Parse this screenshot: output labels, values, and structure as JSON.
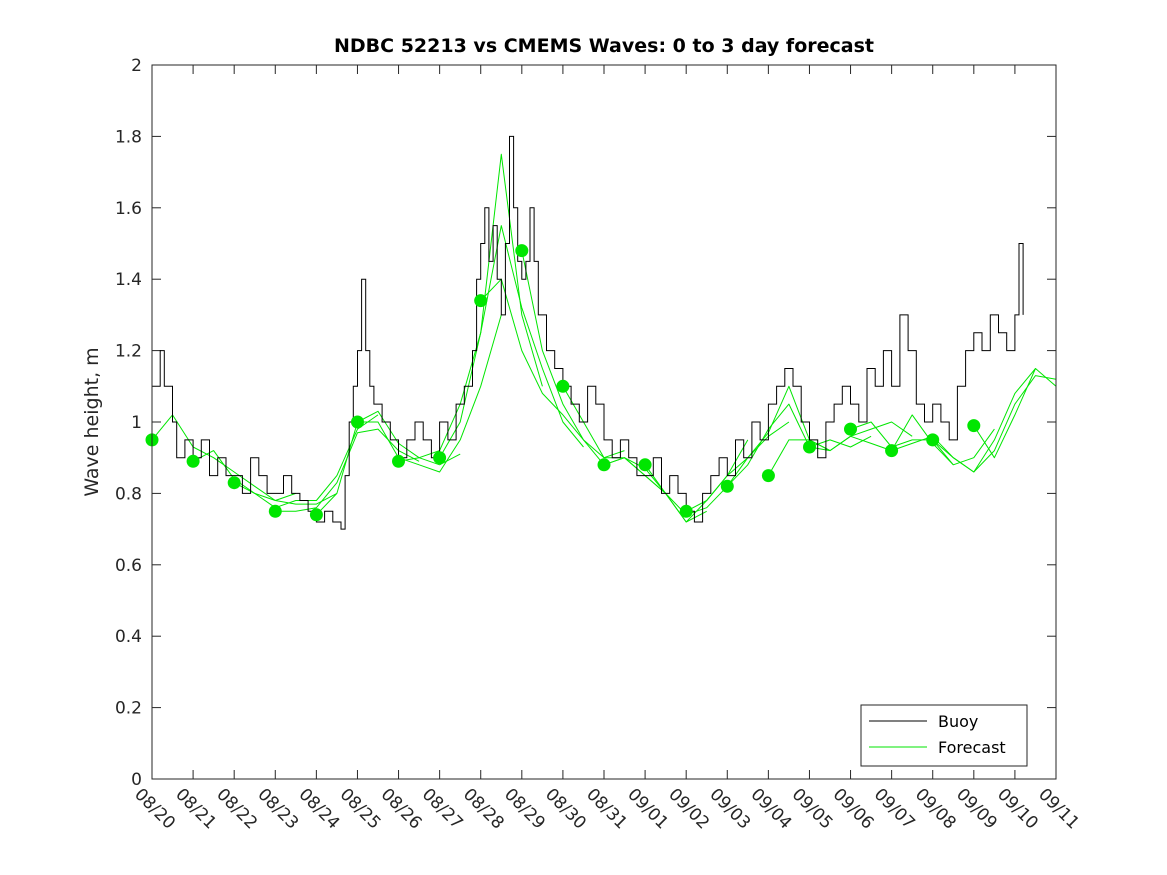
{
  "chart_data": {
    "type": "line",
    "title": "NDBC 52213 vs CMEMS Waves: 0 to 3 day forecast",
    "xlabel": "",
    "ylabel": "Wave height, m",
    "ylim": [
      0,
      2
    ],
    "yticks": [
      "0",
      "0.2",
      "0.4",
      "0.6",
      "0.8",
      "1",
      "1.2",
      "1.4",
      "1.6",
      "1.8",
      "2"
    ],
    "xlim": [
      0,
      22
    ],
    "xtick_labels": [
      "08/20",
      "08/21",
      "08/22",
      "08/23",
      "08/24",
      "08/25",
      "08/26",
      "08/27",
      "08/28",
      "08/29",
      "08/30",
      "08/31",
      "09/01",
      "09/02",
      "09/03",
      "09/04",
      "09/05",
      "09/06",
      "09/07",
      "09/08",
      "09/09",
      "09/10",
      "09/11"
    ],
    "legend": {
      "location": "bottom-right",
      "entries": [
        "Buoy",
        "Forecast"
      ]
    },
    "colors": {
      "buoy": "#000000",
      "forecast": "#00e600",
      "axis": "#262626"
    },
    "series": [
      {
        "name": "Buoy",
        "x": [
          0,
          0.2,
          0.3,
          0.5,
          0.6,
          0.8,
          1.0,
          1.2,
          1.4,
          1.6,
          1.8,
          2.0,
          2.2,
          2.4,
          2.6,
          2.8,
          3.0,
          3.2,
          3.4,
          3.6,
          3.8,
          4.0,
          4.2,
          4.4,
          4.6,
          4.7,
          4.8,
          4.9,
          5.0,
          5.1,
          5.2,
          5.3,
          5.4,
          5.6,
          5.8,
          6.0,
          6.2,
          6.4,
          6.6,
          6.8,
          7.0,
          7.2,
          7.4,
          7.6,
          7.8,
          7.9,
          8.0,
          8.1,
          8.2,
          8.3,
          8.4,
          8.5,
          8.6,
          8.7,
          8.8,
          8.9,
          9.0,
          9.1,
          9.2,
          9.3,
          9.4,
          9.6,
          9.8,
          10.0,
          10.2,
          10.4,
          10.6,
          10.8,
          11.0,
          11.2,
          11.4,
          11.6,
          11.8,
          12.0,
          12.2,
          12.4,
          12.6,
          12.8,
          13.0,
          13.2,
          13.4,
          13.6,
          13.8,
          14.0,
          14.2,
          14.4,
          14.6,
          14.8,
          15.0,
          15.2,
          15.4,
          15.6,
          15.8,
          16.0,
          16.2,
          16.4,
          16.6,
          16.8,
          17.0,
          17.2,
          17.4,
          17.6,
          17.8,
          18.0,
          18.2,
          18.4,
          18.6,
          18.8,
          19.0,
          19.2,
          19.4,
          19.6,
          19.8,
          20.0,
          20.2,
          20.4,
          20.6,
          20.8,
          21.0,
          21.1,
          21.2
        ],
        "values": [
          1.1,
          1.2,
          1.1,
          1.0,
          0.9,
          0.95,
          0.9,
          0.95,
          0.85,
          0.9,
          0.85,
          0.85,
          0.8,
          0.9,
          0.85,
          0.8,
          0.8,
          0.85,
          0.8,
          0.78,
          0.75,
          0.72,
          0.75,
          0.72,
          0.7,
          0.85,
          1.0,
          1.1,
          1.2,
          1.4,
          1.2,
          1.1,
          1.05,
          1.0,
          0.95,
          0.9,
          0.95,
          1.0,
          0.95,
          0.9,
          1.0,
          0.95,
          1.05,
          1.1,
          1.2,
          1.4,
          1.5,
          1.6,
          1.45,
          1.55,
          1.4,
          1.3,
          1.5,
          1.8,
          1.6,
          1.45,
          1.4,
          1.45,
          1.6,
          1.45,
          1.3,
          1.2,
          1.15,
          1.1,
          1.05,
          1.0,
          1.1,
          1.05,
          0.95,
          0.9,
          0.95,
          0.9,
          0.85,
          0.85,
          0.9,
          0.8,
          0.85,
          0.8,
          0.75,
          0.72,
          0.8,
          0.85,
          0.9,
          0.85,
          0.95,
          0.9,
          1.0,
          0.95,
          1.05,
          1.1,
          1.15,
          1.1,
          1.0,
          0.95,
          0.9,
          1.0,
          1.05,
          1.1,
          1.05,
          1.0,
          1.15,
          1.1,
          1.2,
          1.1,
          1.3,
          1.2,
          1.05,
          1.0,
          1.05,
          1.0,
          0.95,
          1.1,
          1.2,
          1.25,
          1.2,
          1.3,
          1.25,
          1.2,
          1.3,
          1.5,
          1.3
        ]
      },
      {
        "name": "Forecast",
        "markers": {
          "x": [
            0,
            1,
            2,
            3,
            4,
            5,
            6,
            7,
            8,
            9,
            10,
            11,
            12,
            13,
            14,
            15,
            16,
            17,
            18,
            19,
            20
          ],
          "values": [
            0.95,
            0.89,
            0.83,
            0.75,
            0.74,
            1.0,
            0.89,
            0.9,
            1.34,
            1.48,
            1.1,
            0.88,
            0.88,
            0.75,
            0.82,
            0.85,
            0.93,
            0.98,
            0.92,
            0.95,
            0.99
          ]
        },
        "runs": [
          {
            "x": [
              0,
              0.5,
              1,
              1.5,
              2,
              2.5,
              3,
              3.5
            ],
            "values": [
              0.95,
              1.02,
              0.93,
              0.9,
              0.86,
              0.82,
              0.78,
              0.8
            ]
          },
          {
            "x": [
              1,
              1.5,
              2,
              2.5,
              3,
              3.5,
              4,
              4.5
            ],
            "values": [
              0.89,
              0.92,
              0.84,
              0.8,
              0.78,
              0.77,
              0.77,
              0.8
            ]
          },
          {
            "x": [
              2,
              2.5,
              3,
              3.5,
              4,
              4.5,
              5,
              5.5
            ],
            "values": [
              0.83,
              0.8,
              0.76,
              0.78,
              0.78,
              0.85,
              0.98,
              1.02
            ]
          },
          {
            "x": [
              3,
              3.5,
              4,
              4.5,
              5,
              5.5,
              6,
              6.5
            ],
            "values": [
              0.75,
              0.75,
              0.76,
              0.83,
              0.97,
              0.98,
              0.92,
              0.89
            ]
          },
          {
            "x": [
              4,
              4.5,
              5,
              5.5,
              6,
              6.5,
              7,
              7.5
            ],
            "values": [
              0.74,
              0.8,
              1.0,
              1.03,
              0.94,
              0.9,
              0.88,
              0.91
            ]
          },
          {
            "x": [
              5,
              5.5,
              6,
              6.5,
              7,
              7.5,
              8,
              8.5
            ],
            "values": [
              1.0,
              1.0,
              0.9,
              0.88,
              0.86,
              0.95,
              1.1,
              1.3
            ]
          },
          {
            "x": [
              6,
              6.5,
              7,
              7.5,
              8,
              8.5,
              9,
              9.5
            ],
            "values": [
              0.89,
              0.9,
              0.92,
              1.05,
              1.25,
              1.75,
              1.3,
              1.1
            ]
          },
          {
            "x": [
              7,
              7.5,
              8,
              8.5,
              9,
              9.5,
              10,
              10.5
            ],
            "values": [
              0.9,
              1.0,
              1.25,
              1.55,
              1.32,
              1.15,
              1.0,
              0.93
            ]
          },
          {
            "x": [
              8,
              8.5,
              9,
              9.5,
              10,
              10.5,
              11,
              11.5
            ],
            "values": [
              1.34,
              1.4,
              1.2,
              1.08,
              1.02,
              0.95,
              0.9,
              0.92
            ]
          },
          {
            "x": [
              9,
              9.5,
              10,
              10.5,
              11,
              11.5,
              12,
              12.5
            ],
            "values": [
              1.48,
              1.2,
              1.05,
              0.95,
              0.88,
              0.9,
              0.85,
              0.8
            ]
          },
          {
            "x": [
              10,
              10.5,
              11,
              11.5,
              12,
              12.5,
              13,
              13.5
            ],
            "values": [
              1.1,
              1.0,
              0.9,
              0.9,
              0.85,
              0.8,
              0.72,
              0.75
            ]
          },
          {
            "x": [
              11,
              11.5,
              12,
              12.5,
              13,
              13.5,
              14,
              14.5
            ],
            "values": [
              0.88,
              0.9,
              0.87,
              0.8,
              0.72,
              0.78,
              0.85,
              0.95
            ]
          },
          {
            "x": [
              12,
              12.5,
              13,
              13.5,
              14,
              14.5,
              15,
              15.5
            ],
            "values": [
              0.88,
              0.8,
              0.74,
              0.76,
              0.82,
              0.9,
              0.96,
              1.0
            ]
          },
          {
            "x": [
              13,
              13.5,
              14,
              14.5,
              15,
              15.5,
              16,
              16.5
            ],
            "values": [
              0.75,
              0.78,
              0.85,
              0.9,
              0.97,
              1.1,
              0.95,
              0.92
            ]
          },
          {
            "x": [
              14,
              14.5,
              15,
              15.5,
              16,
              16.5,
              17,
              17.5
            ],
            "values": [
              0.82,
              0.88,
              0.98,
              1.05,
              0.93,
              0.95,
              0.93,
              0.96
            ]
          },
          {
            "x": [
              15,
              15.5,
              16,
              16.5,
              17,
              17.5,
              18,
              18.5
            ],
            "values": [
              0.85,
              0.95,
              0.95,
              0.92,
              0.96,
              0.98,
              1.0,
              0.96
            ]
          },
          {
            "x": [
              16,
              16.5,
              17,
              17.5,
              18,
              18.5,
              19,
              19.5
            ],
            "values": [
              0.93,
              0.92,
              0.96,
              0.94,
              0.92,
              1.02,
              0.94,
              0.88
            ]
          },
          {
            "x": [
              17,
              17.5,
              18,
              18.5,
              19,
              19.5,
              20,
              20.5
            ],
            "values": [
              0.98,
              1.0,
              0.93,
              0.95,
              0.95,
              0.88,
              0.9,
              0.98
            ]
          },
          {
            "x": [
              18,
              18.5,
              19,
              19.5,
              20,
              20.5,
              21,
              21.5
            ],
            "values": [
              0.92,
              0.94,
              0.96,
              0.9,
              0.86,
              0.95,
              1.08,
              1.15
            ]
          },
          {
            "x": [
              19,
              19.5,
              20,
              20.5,
              21,
              21.5,
              22
            ],
            "values": [
              0.95,
              0.9,
              0.86,
              0.92,
              1.05,
              1.13,
              1.12
            ]
          },
          {
            "x": [
              20,
              20.5,
              21,
              21.5,
              22
            ],
            "values": [
              0.99,
              0.9,
              1.02,
              1.15,
              1.1
            ]
          }
        ]
      }
    ]
  }
}
